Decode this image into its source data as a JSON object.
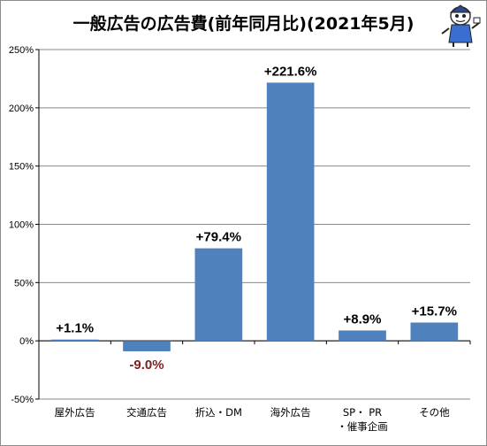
{
  "title": "一般広告の広告費(前年同月比)(2021年5月)",
  "colors": {
    "bar": "#4f81bd",
    "positive_label": "#000000",
    "negative_label": "#7f1f1f",
    "grid": "#888888"
  },
  "mascot": "cartoon-character-illustration",
  "chart_data": {
    "type": "bar",
    "title": "一般広告の広告費(前年同月比)(2021年5月)",
    "categories": [
      [
        "屋外広告"
      ],
      [
        "交通広告"
      ],
      [
        "折込・DM"
      ],
      [
        "海外広告"
      ],
      [
        "SP・ PR",
        "・催事企画"
      ],
      [
        "その他"
      ]
    ],
    "values": [
      1.1,
      -9.0,
      79.4,
      221.6,
      8.9,
      15.7
    ],
    "data_labels": [
      "+1.1%",
      "-9.0%",
      "+79.4%",
      "+221.6%",
      "+8.9%",
      "+15.7%"
    ],
    "ylim": [
      -50,
      250
    ],
    "yticks": [
      -50,
      0,
      50,
      100,
      150,
      200,
      250
    ],
    "ytick_labels": [
      "-50%",
      "0%",
      "50%",
      "100%",
      "150%",
      "200%",
      "250%"
    ],
    "grid": true,
    "legend": "none"
  }
}
